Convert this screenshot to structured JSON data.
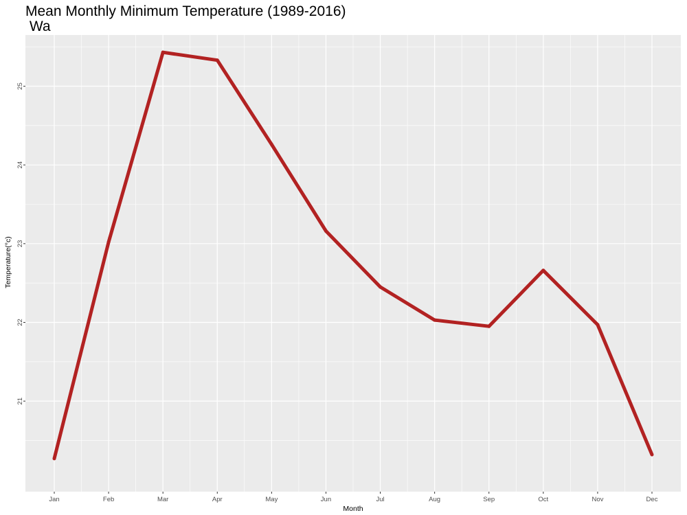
{
  "chart_data": {
    "type": "line",
    "title": "Mean Monthly Minimum Temperature (1989-2016)",
    "subtitle": "Wa",
    "xlabel": "Month",
    "ylabel": "Temperature(°c)",
    "categories": [
      "Jan",
      "Feb",
      "Mar",
      "Apr",
      "May",
      "Jun",
      "Jul",
      "Aug",
      "Sep",
      "Oct",
      "Nov",
      "Dec"
    ],
    "series": [
      {
        "values": [
          20.27,
          23.02,
          25.43,
          25.33,
          24.26,
          23.16,
          22.45,
          22.03,
          21.95,
          22.66,
          21.97,
          20.32
        ],
        "color": "#b22222"
      }
    ],
    "ylim": [
      19.85,
      25.65
    ],
    "yticks": [
      21,
      22,
      23,
      24,
      25
    ],
    "grid": true,
    "panel_background": "#ebebeb",
    "grid_color": "#ffffff"
  }
}
